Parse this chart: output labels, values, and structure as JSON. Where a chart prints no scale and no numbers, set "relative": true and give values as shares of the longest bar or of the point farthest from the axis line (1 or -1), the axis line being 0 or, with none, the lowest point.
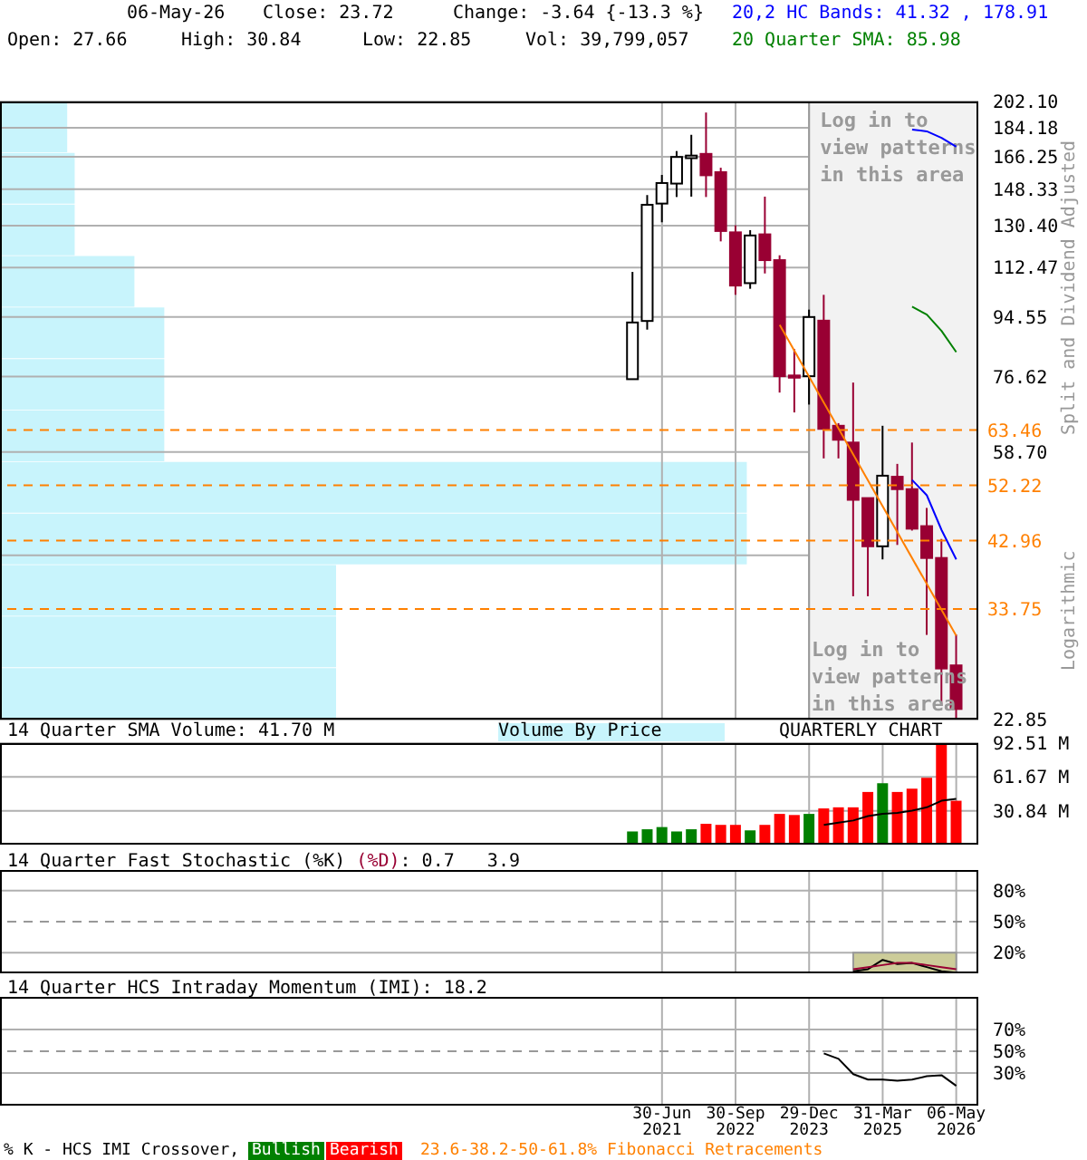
{
  "chart_data": [
    {
      "type": "candlestick",
      "annotations": [
        "06-May-26",
        "Close: 23.72",
        "Change: -3.64 {-13.3 %}",
        "Open: 27.66",
        "High: 30.84",
        "Low: 22.85",
        "Vol: 39,799,057",
        "Split and Dividend Adjusted",
        "Logarithmic",
        "Log in to view patterns in this area"
      ],
      "categories": [
        null,
        null,
        "30-Jun 2021",
        null,
        null,
        null,
        null,
        "30-Sep 2022",
        null,
        null,
        null,
        null,
        "29-Dec 2023",
        null,
        null,
        null,
        null,
        "31-Mar 2025",
        null,
        null,
        null,
        null,
        "06-May 2026"
      ],
      "ohlc": [
        [
          75.9,
          110.8,
          75.9,
          92.7
        ],
        [
          93.2,
          145.3,
          90.4,
          140.4
        ],
        [
          141.0,
          156.0,
          132.0,
          151.6
        ],
        [
          151.3,
          169.7,
          144.3,
          166.2
        ],
        [
          165.5,
          179.7,
          144.5,
          167.0
        ],
        [
          168.0,
          194.4,
          144.3,
          155.8
        ],
        [
          157.5,
          160.0,
          123.4,
          128.0
        ],
        [
          127.4,
          130.6,
          102.2,
          105.6
        ],
        [
          106.5,
          128.4,
          104.4,
          126.0
        ],
        [
          126.5,
          144.5,
          110.2,
          115.5
        ],
        [
          115.5,
          117.5,
          72.4,
          76.7
        ],
        [
          76.9,
          84.4,
          67.5,
          76.3
        ],
        [
          76.7,
          97.0,
          69.4,
          94.5
        ],
        [
          93.3,
          102.2,
          57.4,
          63.7
        ],
        [
          64.4,
          65.0,
          57.4,
          61.3
        ],
        [
          60.7,
          75.0,
          35.3,
          49.6
        ],
        [
          49.9,
          49.9,
          35.3,
          42.1
        ],
        [
          42.1,
          64.4,
          40.2,
          54.0
        ],
        [
          53.8,
          56.3,
          42.3,
          51.5
        ],
        [
          51.5,
          60.7,
          44.5,
          44.8
        ],
        [
          45.2,
          48.2,
          30.8,
          40.4
        ],
        [
          40.4,
          43.2,
          24.0,
          27.36
        ],
        [
          27.66,
          30.84,
          22.85,
          23.72
        ]
      ],
      "colors": [
        "#ffffff",
        "#ffffff",
        "#ffffff",
        "#ffffff",
        "#ffffff",
        "#990033",
        "#990033",
        "#990033",
        "#ffffff",
        "#990033",
        "#990033",
        "#990033",
        "#ffffff",
        "#990033",
        "#990033",
        "#990033",
        "#990033",
        "#ffffff",
        "#990033",
        "#990033",
        "#990033",
        "#990033",
        "#990033"
      ],
      "series": [
        {
          "name": "20,2 HC Bands: 41.32 , 178.91",
          "type": "line",
          "color": "#0000ff",
          "values": [
            null,
            null,
            null,
            null,
            null,
            null,
            null,
            null,
            null,
            null,
            null,
            null,
            null,
            null,
            null,
            null,
            null,
            null,
            null,
            183.0,
            181.9,
            177.8,
            172.3
          ]
        },
        {
          "type": "line",
          "color": "#0000ff",
          "values": [
            null,
            null,
            null,
            null,
            null,
            null,
            null,
            null,
            null,
            null,
            null,
            null,
            null,
            null,
            null,
            null,
            null,
            null,
            null,
            53.2,
            50.4,
            44.6,
            40.2
          ]
        },
        {
          "name": "20 Quarter SMA: 85.98",
          "type": "line",
          "color": "#008000",
          "values": [
            null,
            null,
            null,
            null,
            null,
            null,
            null,
            null,
            null,
            null,
            null,
            null,
            null,
            null,
            null,
            null,
            null,
            null,
            null,
            98.0,
            95.3,
            90.0,
            83.5
          ]
        },
        {
          "type": "line",
          "color": "#ff8000",
          "values": [
            null,
            null,
            null,
            null,
            null,
            null,
            null,
            null,
            null,
            null,
            91.9,
            null,
            null,
            null,
            null,
            null,
            null,
            null,
            null,
            null,
            null,
            null,
            30.7
          ]
        }
      ],
      "ylim": [
        22.85,
        202.1
      ],
      "yticks": [
        22.85,
        {
          "value": 40.78,
          "label": null
        },
        {
          "value": 58.7,
          "label": "58.70"
        },
        76.62,
        94.55,
        112.47,
        {
          "value": 130.4,
          "label": "130.40"
        },
        148.33,
        166.25,
        184.18,
        {
          "value": 202.1,
          "label": "202.10"
        }
      ],
      "log": true,
      "grid": true,
      "legend": "top right",
      "tick_labels": "y",
      "ref_lines": [
        {
          "axis": "y",
          "value": 63.46,
          "label": "63.46",
          "color": "#ff8000",
          "line_style": "dashed"
        },
        {
          "axis": "y",
          "value": 52.22,
          "label": "52.22",
          "color": "#ff8000",
          "line_style": "dashed"
        },
        {
          "axis": "y",
          "value": 42.96,
          "label": "42.96",
          "color": "#ff8000",
          "line_style": "dashed"
        },
        {
          "axis": "y",
          "value": 33.75,
          "label": "33.75",
          "color": "#ff8000",
          "line_style": "dashed"
        }
      ],
      "bands": [
        {
          "axis": "x",
          "from": "29-Dec 2023",
          "to": "06-May 2026",
          "label": "Log in to view patterns in this area",
          "color": "#f2f2f2"
        }
      ]
    },
    {
      "type": "bar",
      "annotations": [
        "QUARTERLY CHART"
      ],
      "categories": [
        null,
        null,
        "30-Jun 2021",
        null,
        null,
        null,
        null,
        "30-Sep 2022",
        null,
        null,
        null,
        null,
        "29-Dec 2023",
        null,
        null,
        null,
        null,
        "31-Mar 2025",
        null,
        null,
        null,
        null,
        "06-May 2026"
      ],
      "series": [
        {
          "type": "bar",
          "colors": [
            "#008000",
            "#008000",
            "#008000",
            "#008000",
            "#008000",
            "#ff0000",
            "#ff0000",
            "#ff0000",
            "#008000",
            "#ff0000",
            "#ff0000",
            "#ff0000",
            "#008000",
            "#ff0000",
            "#ff0000",
            "#ff0000",
            "#ff0000",
            "#008000",
            "#ff0000",
            "#ff0000",
            "#ff0000",
            "#ff0000",
            "#ff0000"
          ],
          "values": [
            12,
            14,
            16,
            12,
            14,
            19,
            18,
            18,
            13,
            18,
            28,
            27,
            28,
            33,
            34,
            34,
            48,
            56,
            48,
            51,
            61,
            92,
            40
          ]
        },
        {
          "name": "14 Quarter SMA Volume: 41.70 M",
          "type": "line",
          "color": "#000000",
          "values": [
            null,
            null,
            null,
            null,
            null,
            null,
            null,
            null,
            null,
            null,
            null,
            null,
            null,
            18,
            20,
            22,
            26,
            28,
            29,
            31,
            34,
            40,
            41.7
          ]
        }
      ],
      "ylim": [
        0,
        92.51
      ],
      "yticks": [
        {
          "value": 30.84,
          "label": "30.84 M"
        },
        {
          "value": 61.67,
          "label": "61.67 M"
        },
        {
          "value": 92.51,
          "label": "92.51 M"
        }
      ],
      "grid": true,
      "legend": "top left",
      "tick_labels": "y"
    },
    {
      "type": "line",
      "annotations": [
        "14 Quarter Fast Stochastic",
        ": 0.7   3.9"
      ],
      "categories": [
        null,
        null,
        "30-Jun 2021",
        null,
        null,
        null,
        null,
        "30-Sep 2022",
        null,
        null,
        null,
        null,
        "29-Dec 2023",
        null,
        null,
        null,
        null,
        "31-Mar 2025",
        null,
        null,
        null,
        null,
        "06-May 2026"
      ],
      "series": [
        {
          "name": "(%K)",
          "color": "#000000",
          "values": [
            null,
            null,
            null,
            null,
            null,
            null,
            null,
            null,
            null,
            null,
            null,
            null,
            null,
            null,
            null,
            2,
            4,
            13,
            9,
            10,
            6,
            2,
            0.7
          ]
        },
        {
          "name": "(%D)",
          "color": "#990033",
          "values": [
            null,
            null,
            null,
            null,
            null,
            null,
            null,
            null,
            null,
            null,
            null,
            null,
            null,
            null,
            null,
            4,
            6,
            8,
            10,
            10,
            8,
            6,
            3.9
          ]
        }
      ],
      "ylim": [
        0,
        100
      ],
      "yticks": [
        {
          "value": 20,
          "label": "20%"
        },
        {
          "value": 50,
          "label": "50%"
        },
        {
          "value": 80,
          "label": "80%"
        }
      ],
      "grid": true,
      "legend": "top left",
      "tick_labels": "y",
      "ref_lines": [
        {
          "axis": "y",
          "value": 50,
          "color": "#999999",
          "line_style": "dashed"
        }
      ],
      "bands": [
        {
          "axis": "y",
          "from": 0,
          "to": 20,
          "color": "#cccc99"
        }
      ]
    },
    {
      "type": "line",
      "annotations": [
        "14 Quarter HCS Intraday Momentum (IMI): 18.2",
        "% K - HCS IMI Crossover,",
        "Bullish",
        "Bearish",
        "23.6-38.2-50-61.8% Fibonacci Retracements"
      ],
      "categories": [
        null,
        null,
        "30-Jun 2021",
        null,
        null,
        null,
        null,
        "30-Sep 2022",
        null,
        null,
        null,
        null,
        "29-Dec 2023",
        null,
        null,
        null,
        null,
        "31-Mar 2025",
        null,
        null,
        null,
        null,
        "06-May 2026"
      ],
      "series": [
        {
          "color": "#000000",
          "values": [
            null,
            null,
            null,
            null,
            null,
            null,
            null,
            null,
            null,
            null,
            null,
            null,
            null,
            48,
            43,
            29,
            24,
            24,
            23,
            24,
            27,
            28,
            18.2
          ]
        }
      ],
      "ylim": [
        0,
        100
      ],
      "yticks": [
        {
          "value": 30,
          "label": "30%"
        },
        {
          "value": 50,
          "label": "50%"
        },
        {
          "value": 70,
          "label": "70%"
        }
      ],
      "grid": true,
      "ref_lines": [
        {
          "axis": "y",
          "value": 50,
          "color": "#999999",
          "line_style": "dashed"
        }
      ]
    },
    {
      "type": "bar",
      "title": "Volume By Price",
      "orientation": "horizontal",
      "relative": true,
      "categories": [
        null,
        null,
        null,
        null,
        null,
        null,
        null,
        null,
        null,
        null,
        null,
        null
      ],
      "values": [
        0.09,
        0.1,
        0.1,
        0.18,
        0.22,
        0.22,
        0.22,
        1,
        1,
        0.45,
        0.45,
        0.45
      ],
      "color": "#c8f4fc"
    }
  ]
}
